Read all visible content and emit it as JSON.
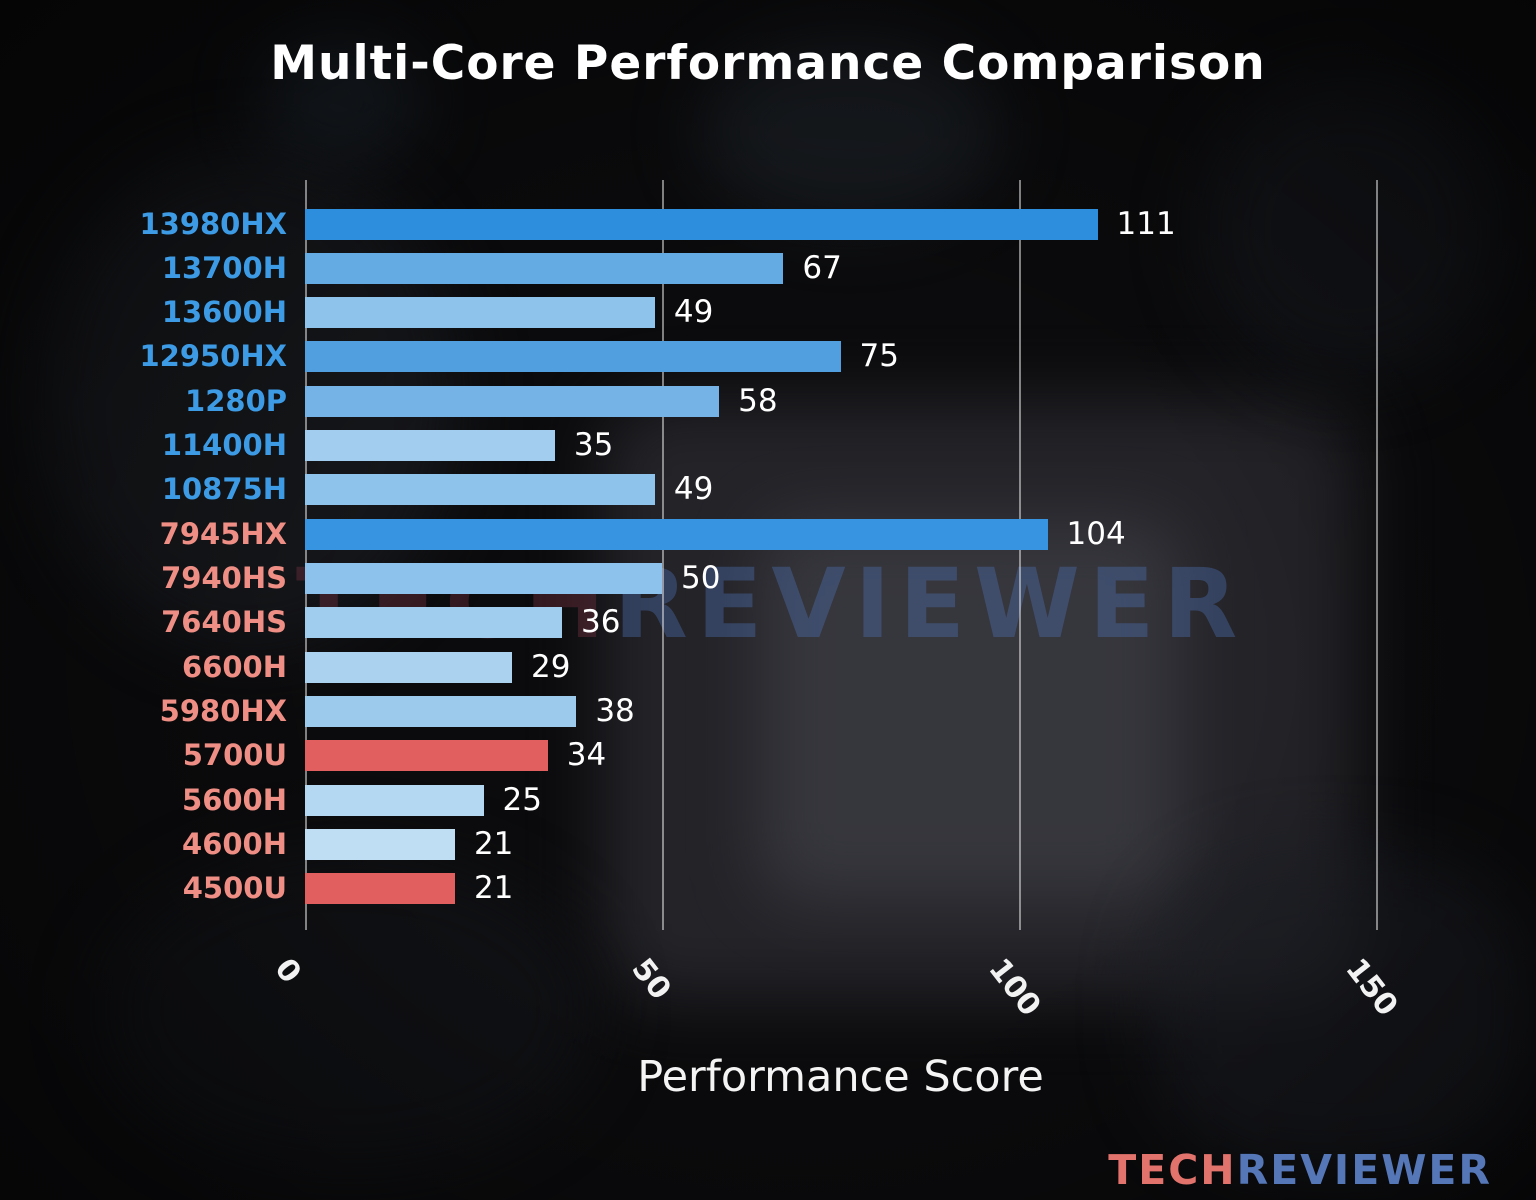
{
  "title": "Multi-Core Performance Comparison",
  "watermark": {
    "part1": "TECH",
    "part2": "REVIEWER"
  },
  "logo": {
    "part1": "TECH",
    "part2": "REVIEWER"
  },
  "colors": {
    "intel_label": "#3d9be6",
    "amd_label": "#ef8e84",
    "highlight_bar_red": "#e25f5f",
    "text": "#ffffff"
  },
  "chart_data": {
    "type": "bar",
    "orientation": "horizontal",
    "title": "Multi-Core Performance Comparison",
    "xlabel": "Performance Score",
    "xlim": [
      0,
      162
    ],
    "xticks": [
      0,
      50,
      100,
      150
    ],
    "grid": true,
    "categories": [
      "13980HX",
      "13700H",
      "13600H",
      "12950HX",
      "1280P",
      "11400H",
      "10875H",
      "7945HX",
      "7940HS",
      "7640HS",
      "6600H",
      "5980HX",
      "5700U",
      "5600H",
      "4600H",
      "4500U"
    ],
    "values": [
      111,
      67,
      49,
      75,
      58,
      35,
      49,
      104,
      50,
      36,
      29,
      38,
      34,
      25,
      21,
      21
    ],
    "bar_colors": [
      "#2d8ede",
      "#64abe4",
      "#8ec3ec",
      "#529fe0",
      "#75b3e6",
      "#a2cdef",
      "#8ec3ec",
      "#3694e0",
      "#8cc2eb",
      "#a0ccee",
      "#abd3f0",
      "#9ccaed",
      "#e25f5f",
      "#b4d8f2",
      "#bfdef4",
      "#e25f5f"
    ],
    "label_colors": [
      "#3d9be6",
      "#3d9be6",
      "#3d9be6",
      "#3d9be6",
      "#3d9be6",
      "#3d9be6",
      "#3d9be6",
      "#ef8e84",
      "#ef8e84",
      "#ef8e84",
      "#ef8e84",
      "#ef8e84",
      "#ef8e84",
      "#ef8e84",
      "#ef8e84",
      "#ef8e84"
    ]
  }
}
